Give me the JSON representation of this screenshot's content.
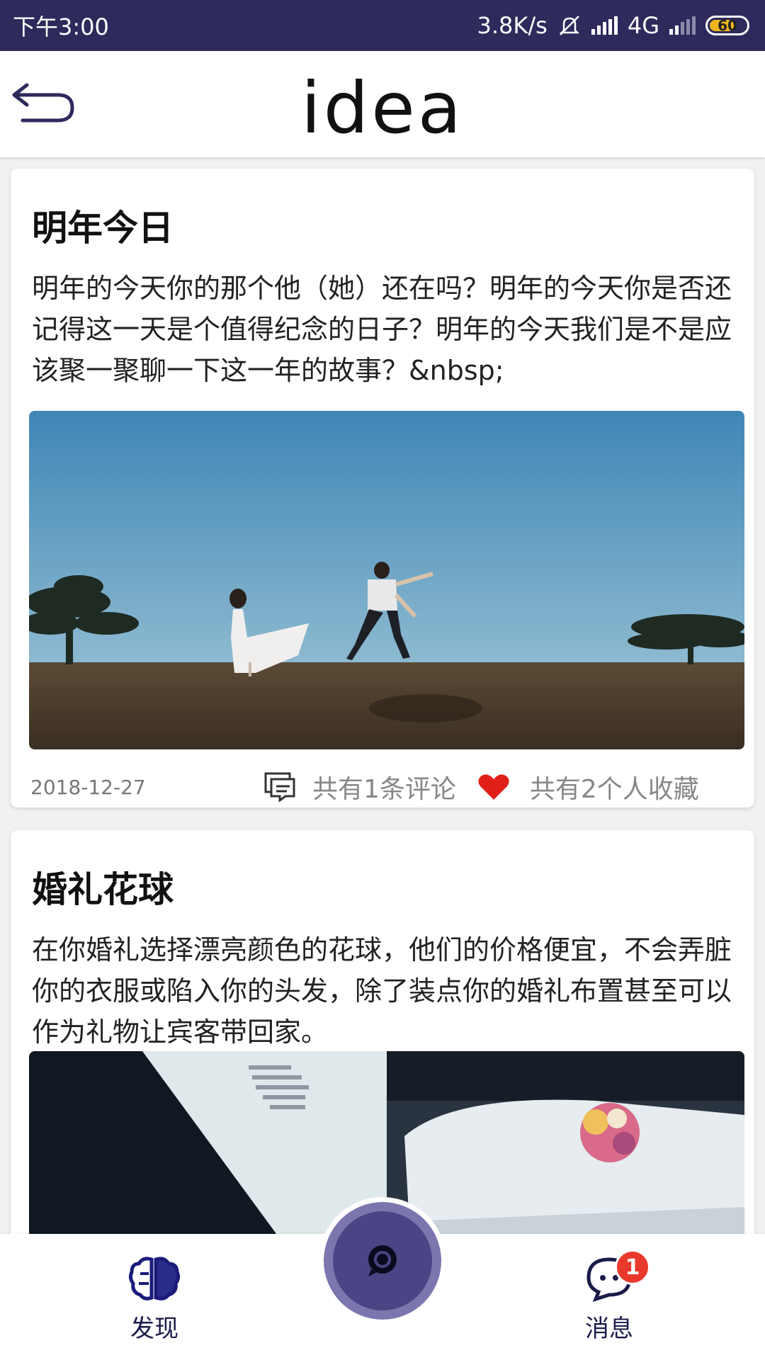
{
  "status_bar": {
    "time": "下午3:00",
    "network_speed": "3.8K/s",
    "network_type": "4G",
    "battery_level": "60"
  },
  "header": {
    "logo_text": "idea"
  },
  "posts": [
    {
      "title": "明年今日",
      "body": "明年的今天你的那个他（她）还在吗？明年的今天你是否还记得这一天是个值得纪念的日子？明年的今天我们是不是应该聚一聚聊一下这一年的故事？&nbsp;",
      "date": "2018-12-27",
      "comments_text": "共有1条评论",
      "likes_text": "共有2个人收藏"
    },
    {
      "title": "婚礼花球",
      "body": "在你婚礼选择漂亮颜色的花球，他们的价格便宜，不会弄脏你的衣服或陷入你的头发，除了装点你的婚礼布置甚至可以作为礼物让宾客带回家。"
    }
  ],
  "bottom_nav": {
    "discover_label": "发现",
    "messages_label": "消息",
    "messages_badge": "1"
  },
  "colors": {
    "status_bar": "#2e2a5c",
    "nav_accent": "#1b1b4a",
    "heart": "#e02018",
    "badge": "#e8392c"
  }
}
